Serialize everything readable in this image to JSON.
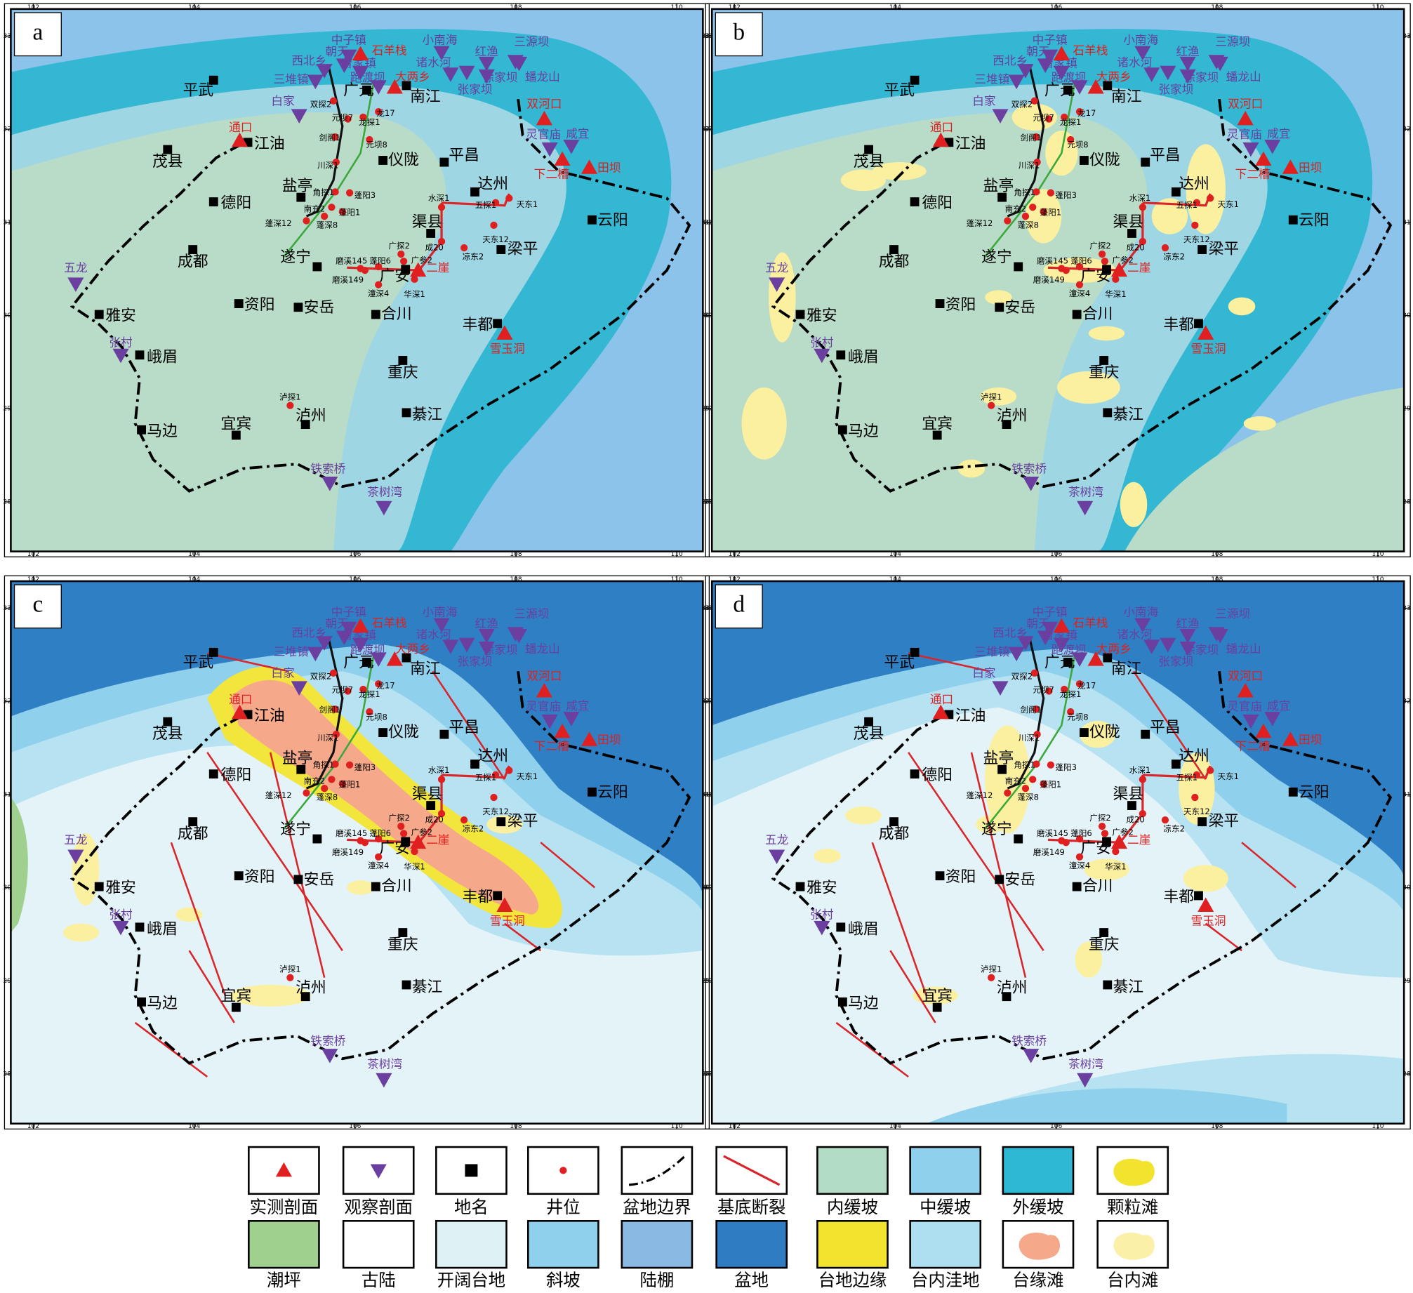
{
  "panel_labels": [
    "a",
    "b",
    "c",
    "d"
  ],
  "lon_ticks": [
    102,
    104,
    106,
    108,
    110
  ],
  "lat_ticks": [
    33,
    32,
    31,
    30,
    29,
    28
  ],
  "places": [
    "平武",
    "茂县",
    "江油",
    "德阳",
    "成都",
    "资阳",
    "安岳",
    "雅安",
    "峨眉",
    "马边",
    "宜宾",
    "泸州",
    "綦江",
    "重庆",
    "合川",
    "遂宁",
    "盐亭",
    "仪陇",
    "平昌",
    "南江",
    "达州",
    "渠县",
    "梁平",
    "丰都",
    "广安",
    "云阳",
    "广元"
  ],
  "measured_sections": [
    "石羊栈",
    "大两乡",
    "通口",
    "双河口",
    "下二槽",
    "田坝",
    "二崖",
    "雪玉洞"
  ],
  "observed_sections": [
    "中子镇",
    "西北乡",
    "朝天",
    "曾家镇",
    "三堆镇",
    "白家",
    "跑渡坝",
    "小南海",
    "诸水河",
    "红渔",
    "三源坝",
    "蟠龙山",
    "徐家坝",
    "张家坝",
    "灵官庙",
    "咸宜",
    "五龙",
    "张村",
    "铁索桥",
    "茶树湾"
  ],
  "wells": [
    "双探2",
    "元坝7",
    "龙探1",
    "龙17",
    "剑阁1",
    "元坝8",
    "川深1",
    "角探1",
    "蓬阳3",
    "南充2",
    "蓬阳1",
    "蓬深12",
    "蓬深8",
    "水深1",
    "五探1",
    "天东1",
    "天东12",
    "成20",
    "广探2",
    "广参2",
    "凉东2",
    "磨溪145",
    "蓬阳6",
    "磨溪149",
    "潼深4",
    "华深1",
    "泸探1"
  ],
  "legend": [
    "实测剖面",
    "观察剖面",
    "地名",
    "井位",
    "盆地边界",
    "基底断裂",
    "内缓坡",
    "中缓坡",
    "外缓坡",
    "颗粒滩",
    "潮坪",
    "古陆",
    "开阔台地",
    "斜坡",
    "陆棚",
    "盆地",
    "台地边缘",
    "台内洼地",
    "台缘滩",
    "台内滩"
  ]
}
